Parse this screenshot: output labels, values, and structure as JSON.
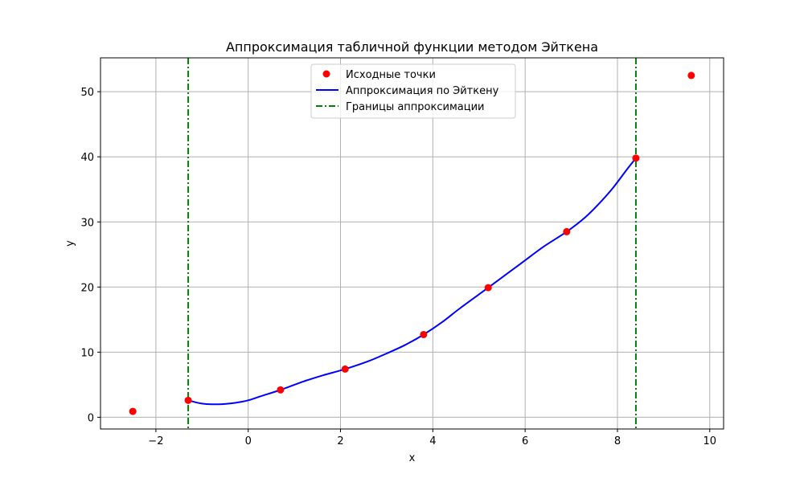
{
  "chart_data": {
    "type": "line",
    "title": "Аппроксимация табличной функции методом Эйткена",
    "xlabel": "x",
    "ylabel": "y",
    "xlim": [
      -3.2,
      10.3
    ],
    "ylim": [
      -1.8,
      55.2
    ],
    "xticks": [
      -2,
      0,
      2,
      4,
      6,
      8,
      10
    ],
    "xtick_labels": [
      "−2",
      "0",
      "2",
      "4",
      "6",
      "8",
      "10"
    ],
    "yticks": [
      0,
      10,
      20,
      30,
      40,
      50
    ],
    "ytick_labels": [
      "0",
      "10",
      "20",
      "30",
      "40",
      "50"
    ],
    "grid": true,
    "legend_position": "top-center",
    "series": [
      {
        "name": "Исходные точки",
        "kind": "scatter",
        "color": "#ff0000",
        "x": [
          -2.5,
          -1.3,
          0.7,
          2.1,
          3.8,
          5.2,
          6.9,
          8.4,
          9.6
        ],
        "y": [
          0.9,
          2.6,
          4.2,
          7.4,
          12.7,
          19.9,
          28.5,
          39.8,
          52.5
        ]
      },
      {
        "name": "Аппроксимация по Эйткену",
        "kind": "line",
        "color": "#0000ff",
        "x": [
          -1.3,
          -1.0,
          -0.65,
          -0.3,
          0.0,
          0.3,
          0.7,
          1.2,
          1.6,
          2.1,
          2.6,
          3.0,
          3.4,
          3.8,
          4.2,
          4.6,
          5.2,
          5.6,
          6.0,
          6.4,
          6.9,
          7.3,
          7.6,
          7.9,
          8.2,
          8.4
        ],
        "y": [
          2.6,
          2.1,
          2.0,
          2.2,
          2.6,
          3.3,
          4.2,
          5.5,
          6.4,
          7.4,
          8.6,
          9.8,
          11.1,
          12.7,
          14.6,
          16.8,
          19.9,
          22.0,
          24.1,
          26.2,
          28.5,
          30.7,
          32.8,
          35.2,
          38.0,
          39.8
        ]
      },
      {
        "name": "Границы аппроксимации",
        "kind": "vline",
        "color": "#008000",
        "x": [
          -1.3,
          8.4
        ]
      }
    ]
  }
}
